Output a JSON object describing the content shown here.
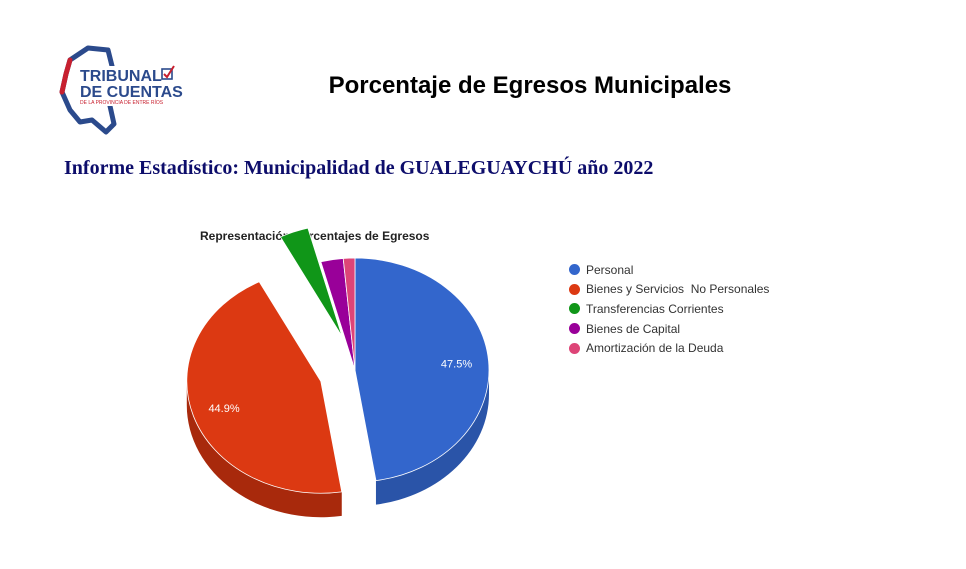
{
  "header": {
    "logo": {
      "line1": "TRIBUNAL",
      "line2": "DE CUENTAS",
      "line3": "DE LA PROVINCIA DE ENTRE RÍOS"
    },
    "title": "Porcentaje de Egresos Municipales",
    "subtitle": "Informe Estadístico: Municipalidad de GUALEGUAYCHÚ año 2022"
  },
  "colors": {
    "logo_blue": "#2b4a8c",
    "logo_red": "#c8202f",
    "subtitle": "#0d0d6b"
  },
  "chart_data": {
    "type": "pie",
    "title": "Representación Porcentajes de Egresos",
    "legend_position": "right",
    "series": [
      {
        "name": "Personal",
        "value": 47.5,
        "color": "#3366cc",
        "side": "#2a54a8",
        "label": "47.5%",
        "exploded": false
      },
      {
        "name": "Bienes y Servicios  No Personales",
        "value": 44.9,
        "color": "#dc3912",
        "side": "#a8290c",
        "label": "44.9%",
        "exploded": true
      },
      {
        "name": "Transferencias Corrientes",
        "value": 3.5,
        "color": "#109618",
        "side": "#0b6e11",
        "label": "",
        "exploded": true
      },
      {
        "name": "Bienes de Capital",
        "value": 2.7,
        "color": "#990099",
        "side": "#6e006e",
        "label": "",
        "exploded": false
      },
      {
        "name": "Amortización de la Deuda",
        "value": 1.4,
        "color": "#dd4477",
        "side": "#a83359",
        "label": "",
        "exploded": false
      }
    ]
  }
}
